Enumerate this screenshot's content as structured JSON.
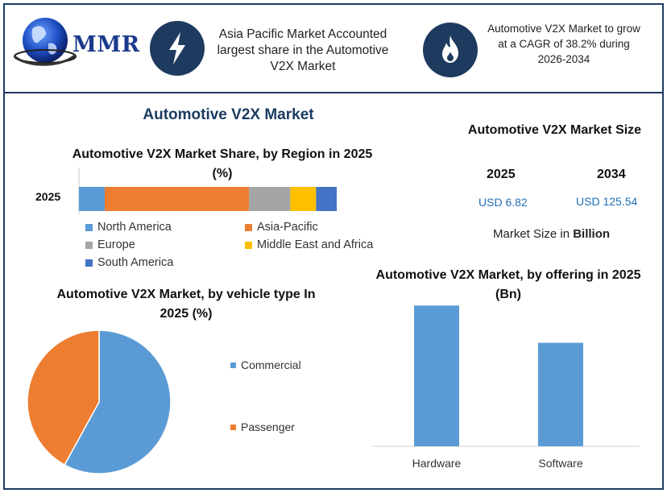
{
  "brand": {
    "logo_text": "MMR"
  },
  "header": {
    "info_1": "Asia Pacific Market Accounted largest share in the Automotive V2X Market",
    "info_2": "Automotive V2X Market to grow at a CAGR of 38.2% during 2026-2034",
    "icon_1": "lightning-bolt-icon",
    "icon_2": "flame-icon"
  },
  "title": "Automotive V2X Market",
  "market_size": {
    "title": "Automotive V2X Market Size",
    "years": [
      "2025",
      "2034"
    ],
    "values": [
      "USD 6.82",
      "USD 125.54"
    ],
    "unit_prefix": "Market Size in",
    "unit": "Billion"
  },
  "colors": {
    "frame": "#1e3a5f",
    "blue": "#5b9bd5",
    "orange": "#ed7d31",
    "gray": "#a5a5a5",
    "yellow": "#ffc000",
    "dark_blue": "#4472c4",
    "value_text": "#1f6fb5"
  },
  "chart_data": [
    {
      "type": "bar",
      "orientation": "horizontal",
      "stacked": true,
      "title": "Automotive V2X Market Share, by Region in 2025 (%)",
      "categories": [
        "2025"
      ],
      "series": [
        {
          "name": "North America",
          "values": [
            10
          ]
        },
        {
          "name": "Asia-Pacific",
          "values": [
            56
          ]
        },
        {
          "name": "Europe",
          "values": [
            16
          ]
        },
        {
          "name": "Middle East and Africa",
          "values": [
            10
          ]
        },
        {
          "name": "South America",
          "values": [
            8
          ]
        }
      ],
      "xlim": [
        0,
        100
      ],
      "legend": "bottom"
    },
    {
      "type": "pie",
      "title": "Automotive V2X Market, by vehicle type In 2025 (%)",
      "labels": [
        "Commercial",
        "Passenger"
      ],
      "values": [
        58,
        42
      ],
      "legend": "right"
    },
    {
      "type": "bar",
      "title": "Automotive V2X Market, by offering in 2025 (Bn)",
      "categories": [
        "Hardware",
        "Software"
      ],
      "values": [
        3.93,
        2.89
      ],
      "ylim": [
        0,
        4.5
      ],
      "grid": false
    }
  ]
}
